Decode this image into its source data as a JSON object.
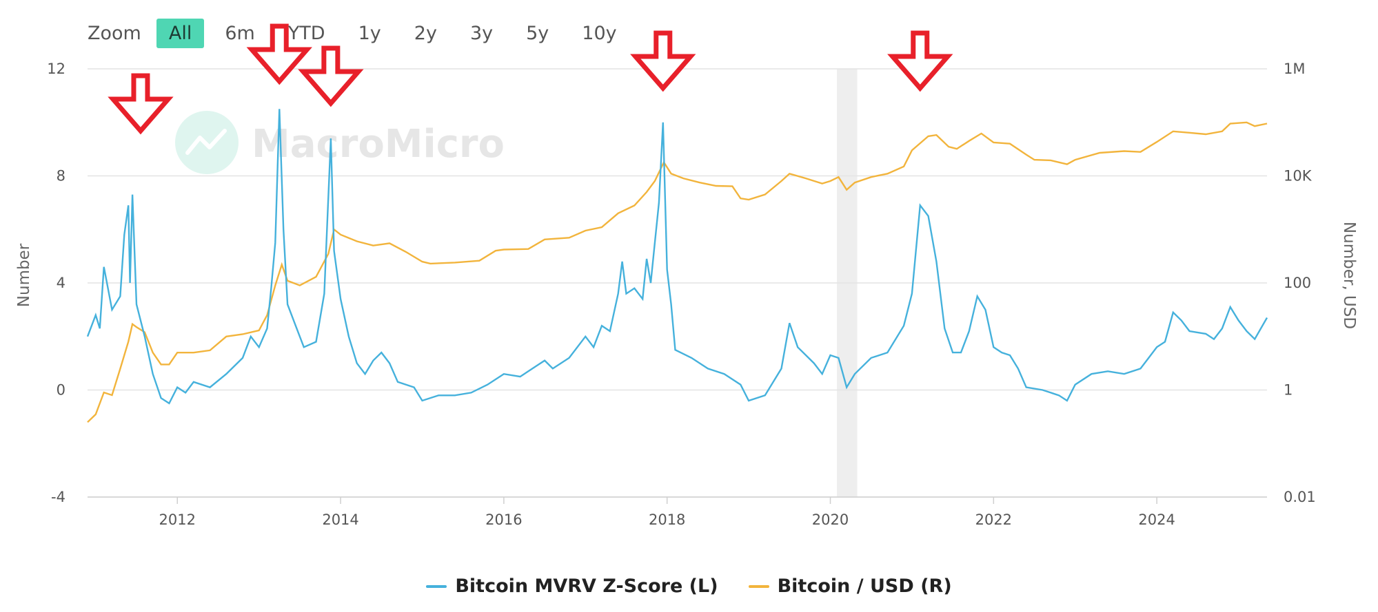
{
  "zoom": {
    "label": "Zoom",
    "buttons": [
      "All",
      "6m",
      "YTD",
      "1y",
      "2y",
      "3y",
      "5y",
      "10y"
    ],
    "active": "All",
    "active_color": "#4fd6b3"
  },
  "watermark": "MacroMicro",
  "chart_data": {
    "type": "line",
    "x_range": [
      2010.9,
      2025.35
    ],
    "x_ticks": [
      "2012",
      "2014",
      "2016",
      "2018",
      "2020",
      "2022",
      "2024"
    ],
    "y_left": {
      "label": "Number",
      "ticks": [
        "12",
        "8",
        "4",
        "0",
        "-4"
      ],
      "range": [
        -4,
        12
      ]
    },
    "y_right": {
      "label": "Number, USD",
      "ticks": [
        "1M",
        "10K",
        "100",
        "1",
        "0.01"
      ],
      "scale": "log",
      "range": [
        0.01,
        1000000
      ]
    },
    "shaded_band": {
      "from": 2020.08,
      "to": 2020.33
    },
    "series": [
      {
        "name": "Bitcoin MVRV Z-Score (L)",
        "axis": "left",
        "color": "#45b1dc",
        "points": [
          [
            2010.9,
            2.0
          ],
          [
            2011.0,
            2.8
          ],
          [
            2011.05,
            2.3
          ],
          [
            2011.1,
            4.6
          ],
          [
            2011.2,
            3.0
          ],
          [
            2011.3,
            3.5
          ],
          [
            2011.35,
            5.8
          ],
          [
            2011.4,
            6.9
          ],
          [
            2011.42,
            4.0
          ],
          [
            2011.45,
            7.3
          ],
          [
            2011.5,
            3.2
          ],
          [
            2011.6,
            2.0
          ],
          [
            2011.7,
            0.6
          ],
          [
            2011.8,
            -0.3
          ],
          [
            2011.9,
            -0.5
          ],
          [
            2012.0,
            0.1
          ],
          [
            2012.1,
            -0.1
          ],
          [
            2012.2,
            0.3
          ],
          [
            2012.4,
            0.1
          ],
          [
            2012.6,
            0.6
          ],
          [
            2012.8,
            1.2
          ],
          [
            2012.9,
            2.0
          ],
          [
            2013.0,
            1.6
          ],
          [
            2013.1,
            2.3
          ],
          [
            2013.15,
            3.8
          ],
          [
            2013.2,
            5.5
          ],
          [
            2013.25,
            10.5
          ],
          [
            2013.3,
            6.0
          ],
          [
            2013.35,
            3.2
          ],
          [
            2013.45,
            2.4
          ],
          [
            2013.55,
            1.6
          ],
          [
            2013.7,
            1.8
          ],
          [
            2013.8,
            3.6
          ],
          [
            2013.88,
            9.4
          ],
          [
            2013.92,
            5.2
          ],
          [
            2014.0,
            3.4
          ],
          [
            2014.1,
            2.0
          ],
          [
            2014.2,
            1.0
          ],
          [
            2014.3,
            0.6
          ],
          [
            2014.4,
            1.1
          ],
          [
            2014.5,
            1.4
          ],
          [
            2014.6,
            1.0
          ],
          [
            2014.7,
            0.3
          ],
          [
            2014.9,
            0.1
          ],
          [
            2015.0,
            -0.4
          ],
          [
            2015.2,
            -0.2
          ],
          [
            2015.4,
            -0.2
          ],
          [
            2015.6,
            -0.1
          ],
          [
            2015.8,
            0.2
          ],
          [
            2016.0,
            0.6
          ],
          [
            2016.2,
            0.5
          ],
          [
            2016.4,
            0.9
          ],
          [
            2016.5,
            1.1
          ],
          [
            2016.6,
            0.8
          ],
          [
            2016.8,
            1.2
          ],
          [
            2017.0,
            2.0
          ],
          [
            2017.1,
            1.6
          ],
          [
            2017.2,
            2.4
          ],
          [
            2017.3,
            2.2
          ],
          [
            2017.4,
            3.6
          ],
          [
            2017.45,
            4.8
          ],
          [
            2017.5,
            3.6
          ],
          [
            2017.6,
            3.8
          ],
          [
            2017.7,
            3.4
          ],
          [
            2017.75,
            4.9
          ],
          [
            2017.8,
            4.0
          ],
          [
            2017.85,
            5.5
          ],
          [
            2017.9,
            7.0
          ],
          [
            2017.95,
            10.0
          ],
          [
            2018.0,
            4.5
          ],
          [
            2018.05,
            3.2
          ],
          [
            2018.1,
            1.5
          ],
          [
            2018.3,
            1.2
          ],
          [
            2018.5,
            0.8
          ],
          [
            2018.7,
            0.6
          ],
          [
            2018.9,
            0.2
          ],
          [
            2019.0,
            -0.4
          ],
          [
            2019.2,
            -0.2
          ],
          [
            2019.4,
            0.8
          ],
          [
            2019.5,
            2.5
          ],
          [
            2019.6,
            1.6
          ],
          [
            2019.8,
            1.0
          ],
          [
            2019.9,
            0.6
          ],
          [
            2020.0,
            1.3
          ],
          [
            2020.1,
            1.2
          ],
          [
            2020.2,
            0.1
          ],
          [
            2020.3,
            0.6
          ],
          [
            2020.5,
            1.2
          ],
          [
            2020.7,
            1.4
          ],
          [
            2020.9,
            2.4
          ],
          [
            2021.0,
            3.6
          ],
          [
            2021.1,
            6.9
          ],
          [
            2021.2,
            6.5
          ],
          [
            2021.3,
            4.8
          ],
          [
            2021.4,
            2.3
          ],
          [
            2021.5,
            1.4
          ],
          [
            2021.6,
            1.4
          ],
          [
            2021.7,
            2.2
          ],
          [
            2021.8,
            3.5
          ],
          [
            2021.9,
            3.0
          ],
          [
            2022.0,
            1.6
          ],
          [
            2022.1,
            1.4
          ],
          [
            2022.2,
            1.3
          ],
          [
            2022.3,
            0.8
          ],
          [
            2022.4,
            0.1
          ],
          [
            2022.6,
            0.0
          ],
          [
            2022.8,
            -0.2
          ],
          [
            2022.9,
            -0.4
          ],
          [
            2023.0,
            0.2
          ],
          [
            2023.2,
            0.6
          ],
          [
            2023.4,
            0.7
          ],
          [
            2023.6,
            0.6
          ],
          [
            2023.8,
            0.8
          ],
          [
            2023.9,
            1.2
          ],
          [
            2024.0,
            1.6
          ],
          [
            2024.1,
            1.8
          ],
          [
            2024.2,
            2.9
          ],
          [
            2024.3,
            2.6
          ],
          [
            2024.4,
            2.2
          ],
          [
            2024.6,
            2.1
          ],
          [
            2024.7,
            1.9
          ],
          [
            2024.8,
            2.3
          ],
          [
            2024.9,
            3.1
          ],
          [
            2025.0,
            2.6
          ],
          [
            2025.1,
            2.2
          ],
          [
            2025.2,
            1.9
          ],
          [
            2025.35,
            2.7
          ]
        ]
      },
      {
        "name": "Bitcoin / USD (R)",
        "axis": "right",
        "color": "#f2b43c",
        "points": [
          [
            2010.9,
            0.25
          ],
          [
            2011.0,
            0.35
          ],
          [
            2011.1,
            0.9
          ],
          [
            2011.2,
            0.8
          ],
          [
            2011.3,
            2.5
          ],
          [
            2011.4,
            8
          ],
          [
            2011.45,
            17
          ],
          [
            2011.5,
            15
          ],
          [
            2011.6,
            12
          ],
          [
            2011.7,
            5
          ],
          [
            2011.8,
            3
          ],
          [
            2011.9,
            3
          ],
          [
            2012.0,
            5
          ],
          [
            2012.2,
            5
          ],
          [
            2012.4,
            5.5
          ],
          [
            2012.6,
            10
          ],
          [
            2012.8,
            11
          ],
          [
            2013.0,
            13
          ],
          [
            2013.1,
            25
          ],
          [
            2013.2,
            90
          ],
          [
            2013.28,
            220
          ],
          [
            2013.35,
            110
          ],
          [
            2013.5,
            90
          ],
          [
            2013.7,
            130
          ],
          [
            2013.85,
            350
          ],
          [
            2013.92,
            1000
          ],
          [
            2014.0,
            800
          ],
          [
            2014.2,
            600
          ],
          [
            2014.4,
            500
          ],
          [
            2014.6,
            550
          ],
          [
            2014.8,
            380
          ],
          [
            2015.0,
            250
          ],
          [
            2015.1,
            230
          ],
          [
            2015.4,
            240
          ],
          [
            2015.7,
            260
          ],
          [
            2015.9,
            400
          ],
          [
            2016.0,
            420
          ],
          [
            2016.3,
            430
          ],
          [
            2016.5,
            650
          ],
          [
            2016.8,
            700
          ],
          [
            2017.0,
            950
          ],
          [
            2017.2,
            1100
          ],
          [
            2017.4,
            2000
          ],
          [
            2017.6,
            2800
          ],
          [
            2017.75,
            5000
          ],
          [
            2017.85,
            8000
          ],
          [
            2017.96,
            18000
          ],
          [
            2018.05,
            11000
          ],
          [
            2018.2,
            9000
          ],
          [
            2018.4,
            7500
          ],
          [
            2018.6,
            6500
          ],
          [
            2018.8,
            6400
          ],
          [
            2018.9,
            3800
          ],
          [
            2019.0,
            3600
          ],
          [
            2019.2,
            4500
          ],
          [
            2019.4,
            8000
          ],
          [
            2019.5,
            11000
          ],
          [
            2019.7,
            9000
          ],
          [
            2019.9,
            7200
          ],
          [
            2020.0,
            8000
          ],
          [
            2020.1,
            9500
          ],
          [
            2020.2,
            5500
          ],
          [
            2020.3,
            7500
          ],
          [
            2020.5,
            9500
          ],
          [
            2020.7,
            11000
          ],
          [
            2020.9,
            15000
          ],
          [
            2021.0,
            30000
          ],
          [
            2021.2,
            55000
          ],
          [
            2021.3,
            58000
          ],
          [
            2021.45,
            35000
          ],
          [
            2021.55,
            32000
          ],
          [
            2021.7,
            45000
          ],
          [
            2021.85,
            62000
          ],
          [
            2022.0,
            42000
          ],
          [
            2022.2,
            40000
          ],
          [
            2022.4,
            25000
          ],
          [
            2022.5,
            20000
          ],
          [
            2022.7,
            19500
          ],
          [
            2022.9,
            16500
          ],
          [
            2023.0,
            20000
          ],
          [
            2023.3,
            27000
          ],
          [
            2023.6,
            29000
          ],
          [
            2023.8,
            28000
          ],
          [
            2024.0,
            43000
          ],
          [
            2024.2,
            68000
          ],
          [
            2024.4,
            64000
          ],
          [
            2024.6,
            60000
          ],
          [
            2024.8,
            68000
          ],
          [
            2024.9,
            95000
          ],
          [
            2025.1,
            100000
          ],
          [
            2025.2,
            85000
          ],
          [
            2025.35,
            95000
          ]
        ]
      }
    ],
    "annotations": [
      {
        "type": "arrow-down",
        "x": 2011.55,
        "color": "#e8202a"
      },
      {
        "type": "arrow-down",
        "x": 2013.25,
        "color": "#e8202a"
      },
      {
        "type": "arrow-down",
        "x": 2013.88,
        "color": "#e8202a"
      },
      {
        "type": "arrow-down",
        "x": 2017.95,
        "color": "#e8202a"
      },
      {
        "type": "arrow-down",
        "x": 2021.1,
        "color": "#e8202a"
      }
    ]
  }
}
